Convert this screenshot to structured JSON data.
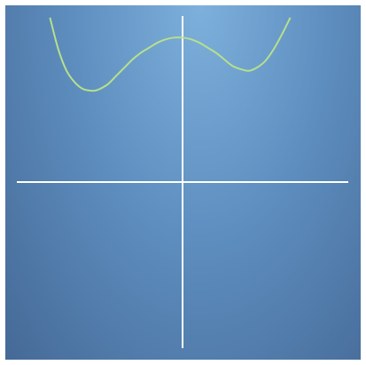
{
  "chart_data": {
    "type": "line",
    "title": "",
    "xlabel": "",
    "ylabel": "",
    "xlim": [
      -10,
      10
    ],
    "ylim": [
      -10,
      10
    ],
    "grid": false,
    "axes_style": "centered-crosshair",
    "colors": {
      "panel_light": "#7eb0dc",
      "panel_dark": "#456996",
      "axis": "#ffffff",
      "curve": "#b7e08a"
    },
    "series": [
      {
        "x": [
          -8.0,
          -7.5,
          -7.0,
          -6.5,
          -6.0,
          -5.5,
          -5.3,
          -5.0,
          -4.5,
          -4.0,
          -3.5,
          -3.0,
          -2.5,
          -2.0,
          -1.5,
          -1.0,
          -0.5,
          0.0,
          0.5,
          1.0,
          1.5,
          2.0,
          2.5,
          3.0,
          3.5,
          4.0,
          4.5,
          5.0,
          5.5,
          6.0,
          6.5
        ],
        "y": [
          9.9,
          8.0,
          6.7,
          6.0,
          5.6,
          5.5,
          5.5,
          5.6,
          5.9,
          6.4,
          6.9,
          7.4,
          7.8,
          8.1,
          8.4,
          8.6,
          8.7,
          8.7,
          8.6,
          8.4,
          8.1,
          7.8,
          7.4,
          7.0,
          6.8,
          6.7,
          6.9,
          7.3,
          8.0,
          8.9,
          9.9
        ]
      }
    ]
  }
}
